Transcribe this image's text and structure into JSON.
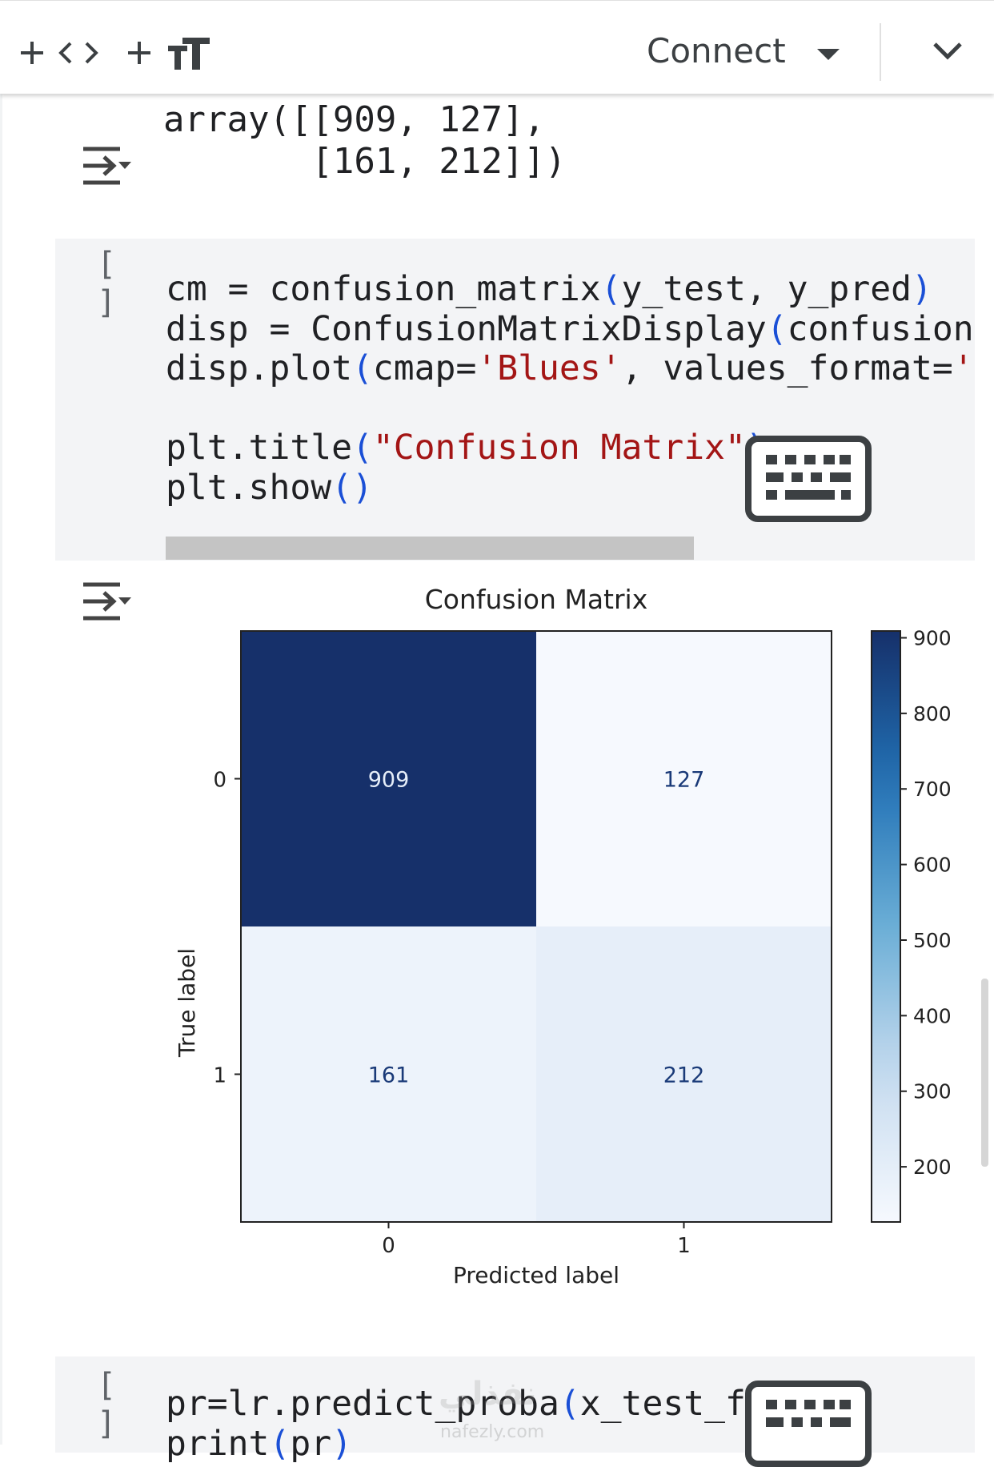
{
  "toolbar": {
    "add_code_label": "+",
    "code_icon": "code-brackets-icon",
    "add_text_label": "+",
    "text_icon": "text-format-icon",
    "connect_label": "Connect",
    "connect_dropdown_icon": "caret-down-icon",
    "expand_icon": "chevron-down-icon"
  },
  "output_array": {
    "line1": "array([[909, 127],",
    "line2": "       [161, 212]])"
  },
  "cell1": {
    "bracket_open": "[",
    "bracket_close": "]",
    "lines": [
      [
        {
          "t": "cm = confusion_matrix",
          "c": ""
        },
        {
          "t": "(",
          "c": "paren"
        },
        {
          "t": "y_test, y_pred",
          "c": ""
        },
        {
          "t": ")",
          "c": "paren"
        }
      ],
      [
        {
          "t": "disp = ConfusionMatrixDisplay",
          "c": ""
        },
        {
          "t": "(",
          "c": "paren"
        },
        {
          "t": "confusion",
          "c": ""
        }
      ],
      [
        {
          "t": "disp.plot",
          "c": ""
        },
        {
          "t": "(",
          "c": "paren"
        },
        {
          "t": "cmap=",
          "c": ""
        },
        {
          "t": "'Blues'",
          "c": "str"
        },
        {
          "t": ", values_format=",
          "c": ""
        },
        {
          "t": "'",
          "c": "str"
        }
      ],
      [],
      [
        {
          "t": "plt.title",
          "c": ""
        },
        {
          "t": "(",
          "c": "paren"
        },
        {
          "t": "\"Confusion Matrix\"",
          "c": "str"
        },
        {
          "t": ")",
          "c": "paren"
        }
      ],
      [
        {
          "t": "plt.show",
          "c": ""
        },
        {
          "t": "()",
          "c": "paren"
        }
      ]
    ]
  },
  "cell2": {
    "bracket_open": "[",
    "bracket_close": "]",
    "lines": [
      [
        {
          "t": "pr=lr.predict_proba",
          "c": ""
        },
        {
          "t": "(",
          "c": "paren"
        },
        {
          "t": "x_test_final",
          "c": ""
        },
        {
          "t": ")",
          "c": "paren"
        }
      ],
      [
        {
          "t": "print",
          "c": ""
        },
        {
          "t": "(",
          "c": "paren"
        },
        {
          "t": "pr",
          "c": ""
        },
        {
          "t": ")",
          "c": "paren"
        }
      ]
    ]
  },
  "icons": {
    "output_toggle": "output-collapse-icon",
    "keyboard": "keyboard-icon"
  },
  "chart_data": {
    "type": "heatmap",
    "title": "Confusion Matrix",
    "xlabel": "Predicted label",
    "ylabel": "True label",
    "x_categories": [
      "0",
      "1"
    ],
    "y_categories": [
      "0",
      "1"
    ],
    "values": [
      [
        909,
        127
      ],
      [
        161,
        212
      ]
    ],
    "colormap": "Blues",
    "colorbar": {
      "min": 127,
      "max": 909,
      "ticks": [
        900,
        800,
        700,
        600,
        500,
        400,
        300,
        200
      ]
    },
    "colors": {
      "dark": "#16306a",
      "mid": "#e6eef9",
      "light": "#f6f9fe",
      "text_dark": "#e6eef9",
      "text_light": "#1a3a78"
    }
  },
  "watermark": {
    "arabic": "نفذلي",
    "url": "nafezly.com"
  }
}
